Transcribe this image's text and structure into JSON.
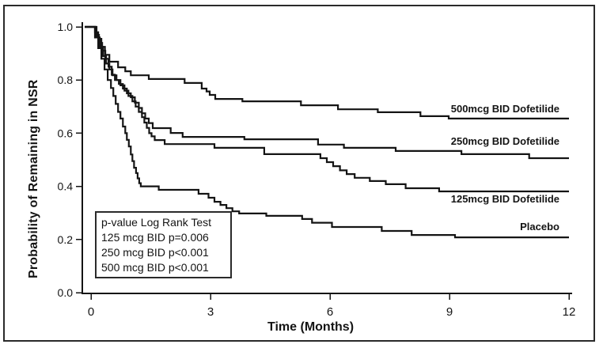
{
  "colors": {
    "ink": "#141414",
    "frame": "#2a2a2a",
    "background": "#ffffff"
  },
  "annotation_box": {
    "lines": [
      "p-value Log Rank Test",
      "125 mcg BID p=0.006",
      "250 mcg BID p<0.001",
      "500 mcg BID p<0.001"
    ]
  },
  "chart_data": {
    "type": "line",
    "subtype": "kaplan-meier-step",
    "title": "",
    "xlabel": "Time (Months)",
    "ylabel": "Probability of Remaining in NSR",
    "xlim": [
      0,
      12
    ],
    "ylim": [
      0.0,
      1.0
    ],
    "x_ticks": [
      "0",
      "3",
      "6",
      "9",
      "12"
    ],
    "y_ticks": [
      "0.0",
      "0.2",
      "0.4",
      "0.6",
      "0.8",
      "1.0"
    ],
    "grid": false,
    "legend_position": "direct-labels-right",
    "series": [
      {
        "name": "500mcg BID Dofetilide",
        "final_value": 0.655,
        "points": [
          [
            0,
            1.0
          ],
          [
            0.1,
            0.98
          ],
          [
            0.18,
            0.955
          ],
          [
            0.26,
            0.925
          ],
          [
            0.35,
            0.895
          ],
          [
            0.46,
            0.869
          ],
          [
            0.68,
            0.848
          ],
          [
            0.86,
            0.833
          ],
          [
            1.0,
            0.818
          ],
          [
            1.45,
            0.804
          ],
          [
            2.35,
            0.789
          ],
          [
            2.78,
            0.768
          ],
          [
            2.9,
            0.757
          ],
          [
            2.98,
            0.744
          ],
          [
            3.12,
            0.729
          ],
          [
            3.8,
            0.72
          ],
          [
            5.27,
            0.705
          ],
          [
            6.2,
            0.69
          ],
          [
            7.2,
            0.679
          ],
          [
            8.27,
            0.664
          ],
          [
            8.98,
            0.655
          ]
        ]
      },
      {
        "name": "250mcg BID Dofetilide",
        "final_value": 0.506,
        "points": [
          [
            0,
            1.0
          ],
          [
            0.12,
            0.97
          ],
          [
            0.2,
            0.94
          ],
          [
            0.28,
            0.91
          ],
          [
            0.36,
            0.88
          ],
          [
            0.44,
            0.85
          ],
          [
            0.52,
            0.82
          ],
          [
            0.6,
            0.8
          ],
          [
            0.7,
            0.785
          ],
          [
            0.8,
            0.768
          ],
          [
            0.9,
            0.75
          ],
          [
            1.0,
            0.735
          ],
          [
            1.1,
            0.715
          ],
          [
            1.2,
            0.695
          ],
          [
            1.28,
            0.675
          ],
          [
            1.36,
            0.655
          ],
          [
            1.45,
            0.638
          ],
          [
            1.55,
            0.619
          ],
          [
            2.0,
            0.601
          ],
          [
            2.3,
            0.586
          ],
          [
            3.85,
            0.577
          ],
          [
            5.7,
            0.557
          ],
          [
            6.35,
            0.545
          ],
          [
            7.65,
            0.533
          ],
          [
            9.3,
            0.521
          ],
          [
            11.0,
            0.506
          ]
        ]
      },
      {
        "name": "125mcg BID Dofetilide",
        "final_value": 0.381,
        "points": [
          [
            0,
            1.0
          ],
          [
            0.14,
            0.96
          ],
          [
            0.22,
            0.925
          ],
          [
            0.3,
            0.89
          ],
          [
            0.38,
            0.862
          ],
          [
            0.46,
            0.84
          ],
          [
            0.54,
            0.818
          ],
          [
            0.64,
            0.8
          ],
          [
            0.74,
            0.78
          ],
          [
            0.84,
            0.76
          ],
          [
            0.94,
            0.74
          ],
          [
            1.04,
            0.72
          ],
          [
            1.12,
            0.7
          ],
          [
            1.2,
            0.68
          ],
          [
            1.28,
            0.66
          ],
          [
            1.34,
            0.64
          ],
          [
            1.4,
            0.62
          ],
          [
            1.46,
            0.6
          ],
          [
            1.52,
            0.588
          ],
          [
            1.6,
            0.574
          ],
          [
            1.85,
            0.559
          ],
          [
            3.1,
            0.545
          ],
          [
            4.35,
            0.521
          ],
          [
            5.76,
            0.506
          ],
          [
            5.92,
            0.491
          ],
          [
            6.08,
            0.476
          ],
          [
            6.25,
            0.46
          ],
          [
            6.42,
            0.446
          ],
          [
            6.62,
            0.432
          ],
          [
            7.0,
            0.42
          ],
          [
            7.4,
            0.408
          ],
          [
            7.9,
            0.393
          ],
          [
            8.74,
            0.381
          ]
        ]
      },
      {
        "name": "Placebo",
        "final_value": 0.208,
        "points": [
          [
            0,
            1.0
          ],
          [
            0.1,
            0.96
          ],
          [
            0.18,
            0.92
          ],
          [
            0.26,
            0.88
          ],
          [
            0.34,
            0.84
          ],
          [
            0.42,
            0.8
          ],
          [
            0.5,
            0.77
          ],
          [
            0.56,
            0.74
          ],
          [
            0.62,
            0.71
          ],
          [
            0.68,
            0.68
          ],
          [
            0.74,
            0.655
          ],
          [
            0.8,
            0.625
          ],
          [
            0.86,
            0.6
          ],
          [
            0.9,
            0.575
          ],
          [
            0.95,
            0.55
          ],
          [
            1.0,
            0.52
          ],
          [
            1.04,
            0.495
          ],
          [
            1.08,
            0.47
          ],
          [
            1.13,
            0.45
          ],
          [
            1.17,
            0.43
          ],
          [
            1.21,
            0.412
          ],
          [
            1.25,
            0.4
          ],
          [
            1.7,
            0.387
          ],
          [
            2.7,
            0.372
          ],
          [
            2.95,
            0.357
          ],
          [
            3.1,
            0.342
          ],
          [
            3.25,
            0.33
          ],
          [
            3.4,
            0.318
          ],
          [
            3.55,
            0.306
          ],
          [
            3.72,
            0.298
          ],
          [
            4.4,
            0.289
          ],
          [
            5.3,
            0.277
          ],
          [
            5.55,
            0.263
          ],
          [
            6.05,
            0.247
          ],
          [
            7.3,
            0.232
          ],
          [
            8.05,
            0.217
          ],
          [
            9.14,
            0.208
          ]
        ]
      }
    ]
  }
}
